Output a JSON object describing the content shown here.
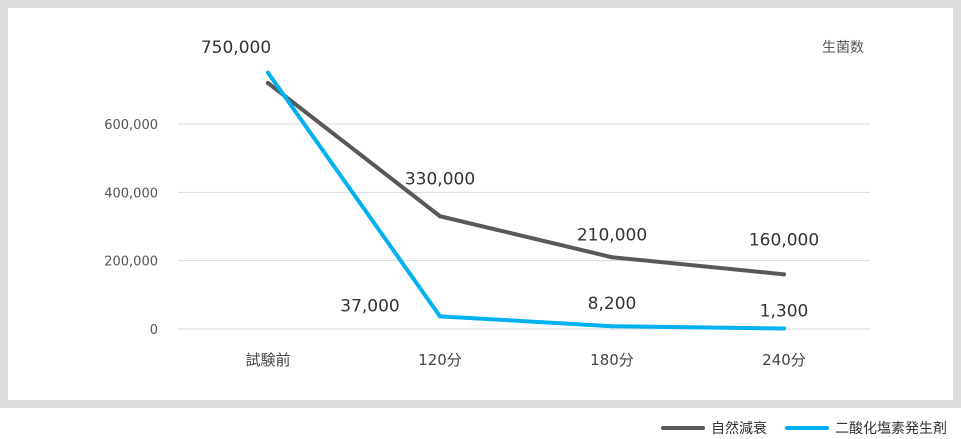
{
  "chart_data": {
    "type": "line",
    "title": "",
    "xlabel": "",
    "ylabel": "生菌数",
    "categories": [
      "試験前",
      "120分",
      "180分",
      "240分"
    ],
    "ylim": [
      0,
      750000
    ],
    "yticks": [
      0,
      200000,
      400000,
      600000
    ],
    "ytick_labels": [
      "0",
      "200,000",
      "400,000",
      "600,000"
    ],
    "grid": true,
    "legend_position": "bottom-right",
    "series": [
      {
        "name": "自然減衰",
        "color": "#595959",
        "values": [
          720000,
          330000,
          210000,
          160000
        ],
        "labels": [
          "",
          "330,000",
          "210,000",
          "160,000"
        ]
      },
      {
        "name": "二酸化塩素発生剤",
        "color": "#00b0f0",
        "values": [
          750000,
          37000,
          8200,
          1300
        ],
        "labels": [
          "750,000",
          "37,000",
          "8,200",
          "1,300"
        ]
      }
    ]
  }
}
